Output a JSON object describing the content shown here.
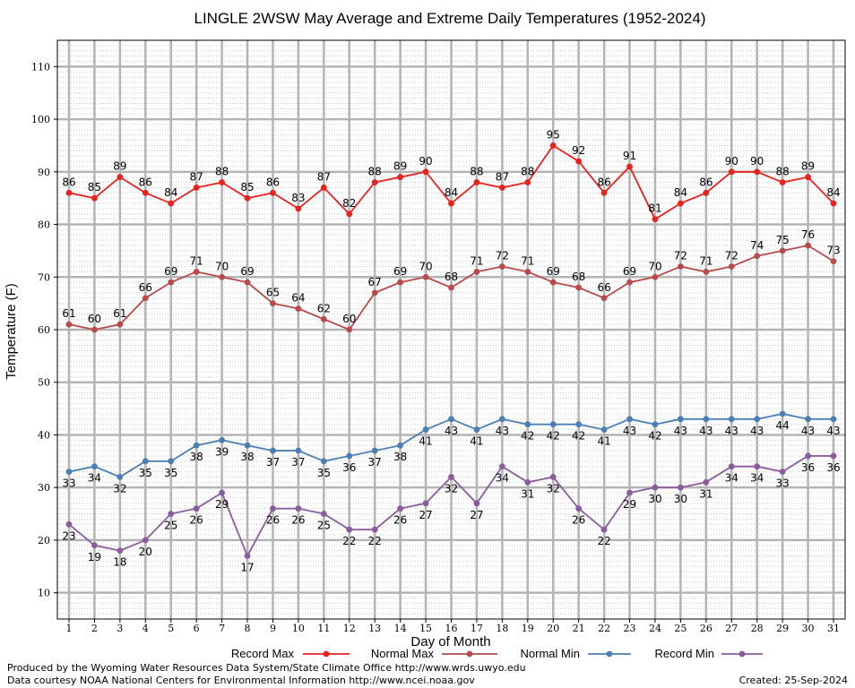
{
  "chart_data": {
    "type": "line",
    "title": "LINGLE 2WSW May Average and Extreme Daily Temperatures (1952-2024)",
    "xlabel": "Day of Month",
    "ylabel": "Temperature (F)",
    "ylim": [
      5,
      115
    ],
    "y_ticks": [
      "10",
      "20",
      "30",
      "40",
      "50",
      "60",
      "70",
      "80",
      "90",
      "100",
      "110"
    ],
    "x_ticks": [
      "1",
      "2",
      "3",
      "4",
      "5",
      "6",
      "7",
      "8",
      "9",
      "10",
      "11",
      "12",
      "13",
      "14",
      "15",
      "16",
      "17",
      "18",
      "19",
      "20",
      "21",
      "22",
      "23",
      "24",
      "25",
      "26",
      "27",
      "28",
      "29",
      "30",
      "31"
    ],
    "grid": true,
    "legend_position": "bottom",
    "series": [
      {
        "name": "Record Max",
        "color": "#e8231f",
        "label_position": "above",
        "values": [
          86,
          85,
          89,
          86,
          84,
          87,
          88,
          85,
          86,
          83,
          87,
          82,
          88,
          89,
          90,
          84,
          88,
          87,
          88,
          95,
          92,
          86,
          91,
          81,
          84,
          86,
          90,
          90,
          88,
          89,
          84
        ]
      },
      {
        "name": "Normal Max",
        "color": "#b84a4a",
        "label_position": "above",
        "values": [
          61,
          60,
          61,
          66,
          69,
          71,
          70,
          69,
          65,
          64,
          62,
          60,
          67,
          69,
          70,
          68,
          71,
          72,
          71,
          69,
          68,
          66,
          69,
          70,
          72,
          71,
          72,
          74,
          75,
          76,
          73
        ]
      },
      {
        "name": "Normal Min",
        "color": "#4a7fb5",
        "label_position": "below",
        "values": [
          33,
          34,
          32,
          35,
          35,
          38,
          39,
          38,
          37,
          37,
          35,
          36,
          37,
          38,
          41,
          43,
          41,
          43,
          42,
          42,
          42,
          41,
          43,
          42,
          43,
          43,
          43,
          43,
          44,
          43,
          43
        ]
      },
      {
        "name": "Record Min",
        "color": "#8a5c9e",
        "label_position": "below",
        "values": [
          23,
          19,
          18,
          20,
          25,
          26,
          29,
          17,
          26,
          26,
          25,
          22,
          22,
          26,
          27,
          32,
          27,
          34,
          31,
          32,
          26,
          22,
          29,
          30,
          30,
          31,
          34,
          34,
          33,
          36,
          36
        ]
      }
    ]
  },
  "footer": {
    "produced_by": "Produced by the Wyoming Water Resources Data System/State Climate Office http://www.wrds.uwyo.edu",
    "data_courtesy": "Data courtesy NOAA National Centers for Environmental Information http://www.ncei.noaa.gov",
    "created": "Created: 25-Sep-2024"
  }
}
